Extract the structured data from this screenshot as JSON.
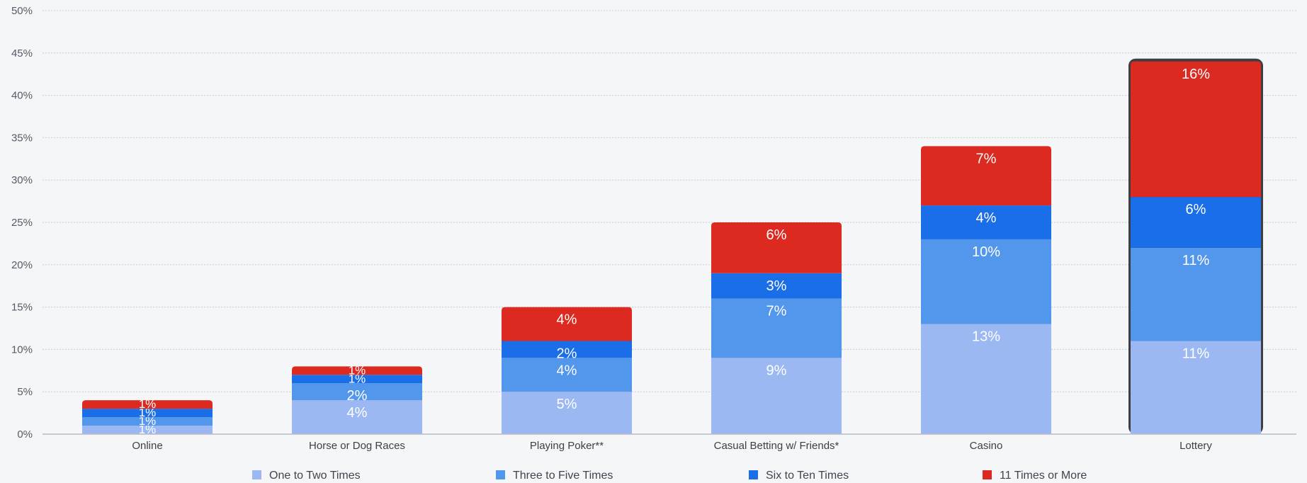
{
  "chart_data": {
    "type": "bar",
    "stacked": true,
    "categories": [
      "Online",
      "Horse or Dog Races",
      "Playing Poker**",
      "Casual Betting w/ Friends*",
      "Casino",
      "Lottery"
    ],
    "series": [
      {
        "name": "One to Two Times",
        "color": "#9bb8f3",
        "values": [
          1,
          4,
          5,
          9,
          13,
          11
        ],
        "labels": [
          "1%",
          "4%",
          "5%",
          "9%",
          "13%",
          "11%"
        ]
      },
      {
        "name": "Three to Five Times",
        "color": "#5297ec",
        "values": [
          1,
          2,
          4,
          7,
          10,
          11
        ],
        "labels": [
          "1%",
          "2%",
          "4%",
          "7%",
          "10%",
          "11%"
        ]
      },
      {
        "name": "Six to Ten Times",
        "color": "#1a6ee8",
        "values": [
          1,
          1,
          2,
          3,
          4,
          6
        ],
        "labels": [
          "1%",
          "1%",
          "2%",
          "3%",
          "4%",
          "6%"
        ]
      },
      {
        "name": "11 Times or More",
        "color": "#dc2a20",
        "values": [
          1,
          1,
          4,
          6,
          7,
          16
        ],
        "labels": [
          "1%",
          "1%",
          "4%",
          "6%",
          "7%",
          "16%"
        ]
      }
    ],
    "y_ticks": [
      "0%",
      "5%",
      "10%",
      "15%",
      "20%",
      "25%",
      "30%",
      "35%",
      "40%",
      "45%",
      "50%"
    ],
    "ylim": [
      0,
      50
    ],
    "grid": true,
    "highlighted_category": "Lottery",
    "legend_position": "bottom"
  }
}
